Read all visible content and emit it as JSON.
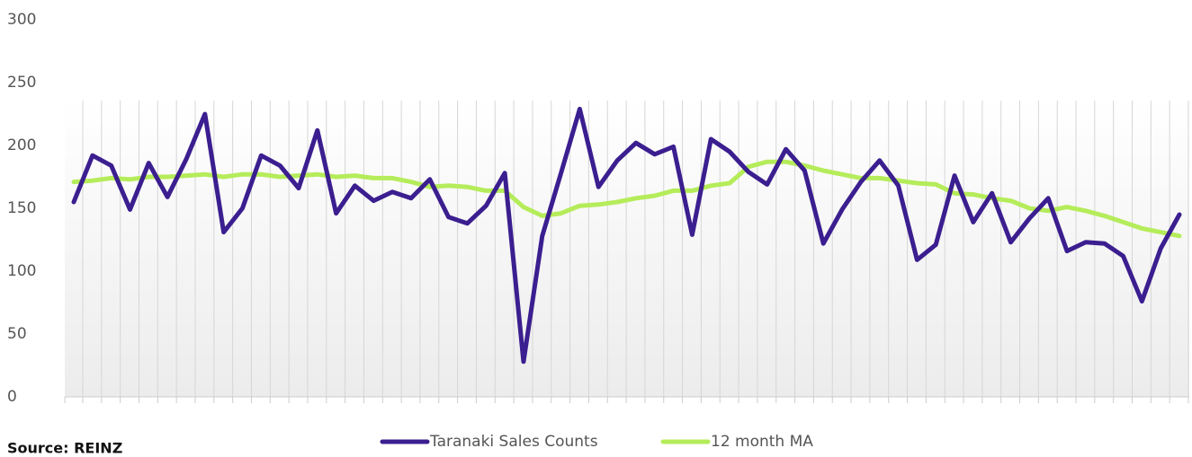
{
  "chart_data": {
    "type": "line",
    "source": "Source: REINZ",
    "categories": [
      null,
      null,
      null,
      null,
      null,
      null,
      null,
      null,
      null,
      null,
      null,
      null,
      null,
      null,
      null,
      null,
      null,
      null,
      null,
      null,
      null,
      null,
      null,
      null,
      null,
      null,
      null,
      null,
      null,
      null,
      null,
      null,
      null,
      null,
      null,
      null,
      null,
      null,
      null,
      null,
      null,
      null,
      null,
      null,
      null,
      null,
      null,
      null,
      null,
      null,
      null,
      null,
      null,
      null,
      null,
      null,
      null,
      null,
      null,
      null
    ],
    "series": [
      {
        "name": "Taranaki Sales Counts",
        "color": "#3b1e8f",
        "values": [
          155,
          192,
          184,
          149,
          186,
          159,
          189,
          225,
          131,
          150,
          192,
          184,
          166,
          212,
          146,
          168,
          156,
          163,
          158,
          173,
          143,
          138,
          152,
          178,
          28,
          128,
          178,
          229,
          167,
          188,
          202,
          193,
          199,
          129,
          205,
          195,
          179,
          169,
          197,
          180,
          122,
          149,
          171,
          188,
          168,
          109,
          121,
          176,
          139,
          162,
          123,
          142,
          158,
          116,
          123,
          122,
          112,
          76,
          118,
          145
        ]
      },
      {
        "name": "12 month MA",
        "color": "#b5ec5a",
        "values": [
          171,
          172,
          174,
          173,
          175,
          175,
          176,
          177,
          175,
          177,
          177,
          175,
          176,
          177,
          175,
          176,
          174,
          174,
          171,
          167,
          168,
          167,
          164,
          164,
          151,
          144,
          146,
          152,
          153,
          155,
          158,
          160,
          164,
          164,
          168,
          170,
          183,
          187,
          187,
          184,
          180,
          177,
          174,
          174,
          172,
          170,
          169,
          162,
          161,
          158,
          156,
          150,
          148,
          151,
          148,
          144,
          139,
          134,
          131,
          128
        ]
      }
    ],
    "ylim": [
      0,
      300
    ],
    "yticks": [
      0,
      50,
      100,
      150,
      200,
      250,
      300
    ],
    "grid": false,
    "legend": "bottom"
  }
}
